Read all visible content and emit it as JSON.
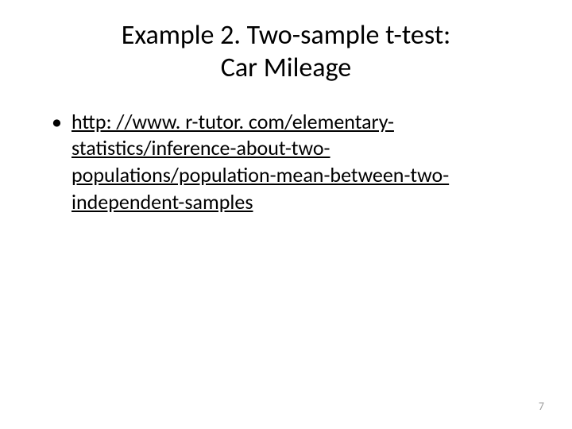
{
  "slide": {
    "title_line1": "Example 2. Two-sample t-test:",
    "title_line2": "Car Mileage",
    "bullet_text": "http: //www. r-tutor. com/elementary-statistics/inference-about-two-populations/population-mean-between-two-independent-samples",
    "page_number": "7",
    "colors": {
      "background": "#ffffff",
      "text": "#000000",
      "page_num": "#a0a0a0"
    },
    "typography": {
      "title_fontsize": 34,
      "body_fontsize": 26,
      "pagenum_fontsize": 14,
      "font_family": "Calibri"
    }
  }
}
